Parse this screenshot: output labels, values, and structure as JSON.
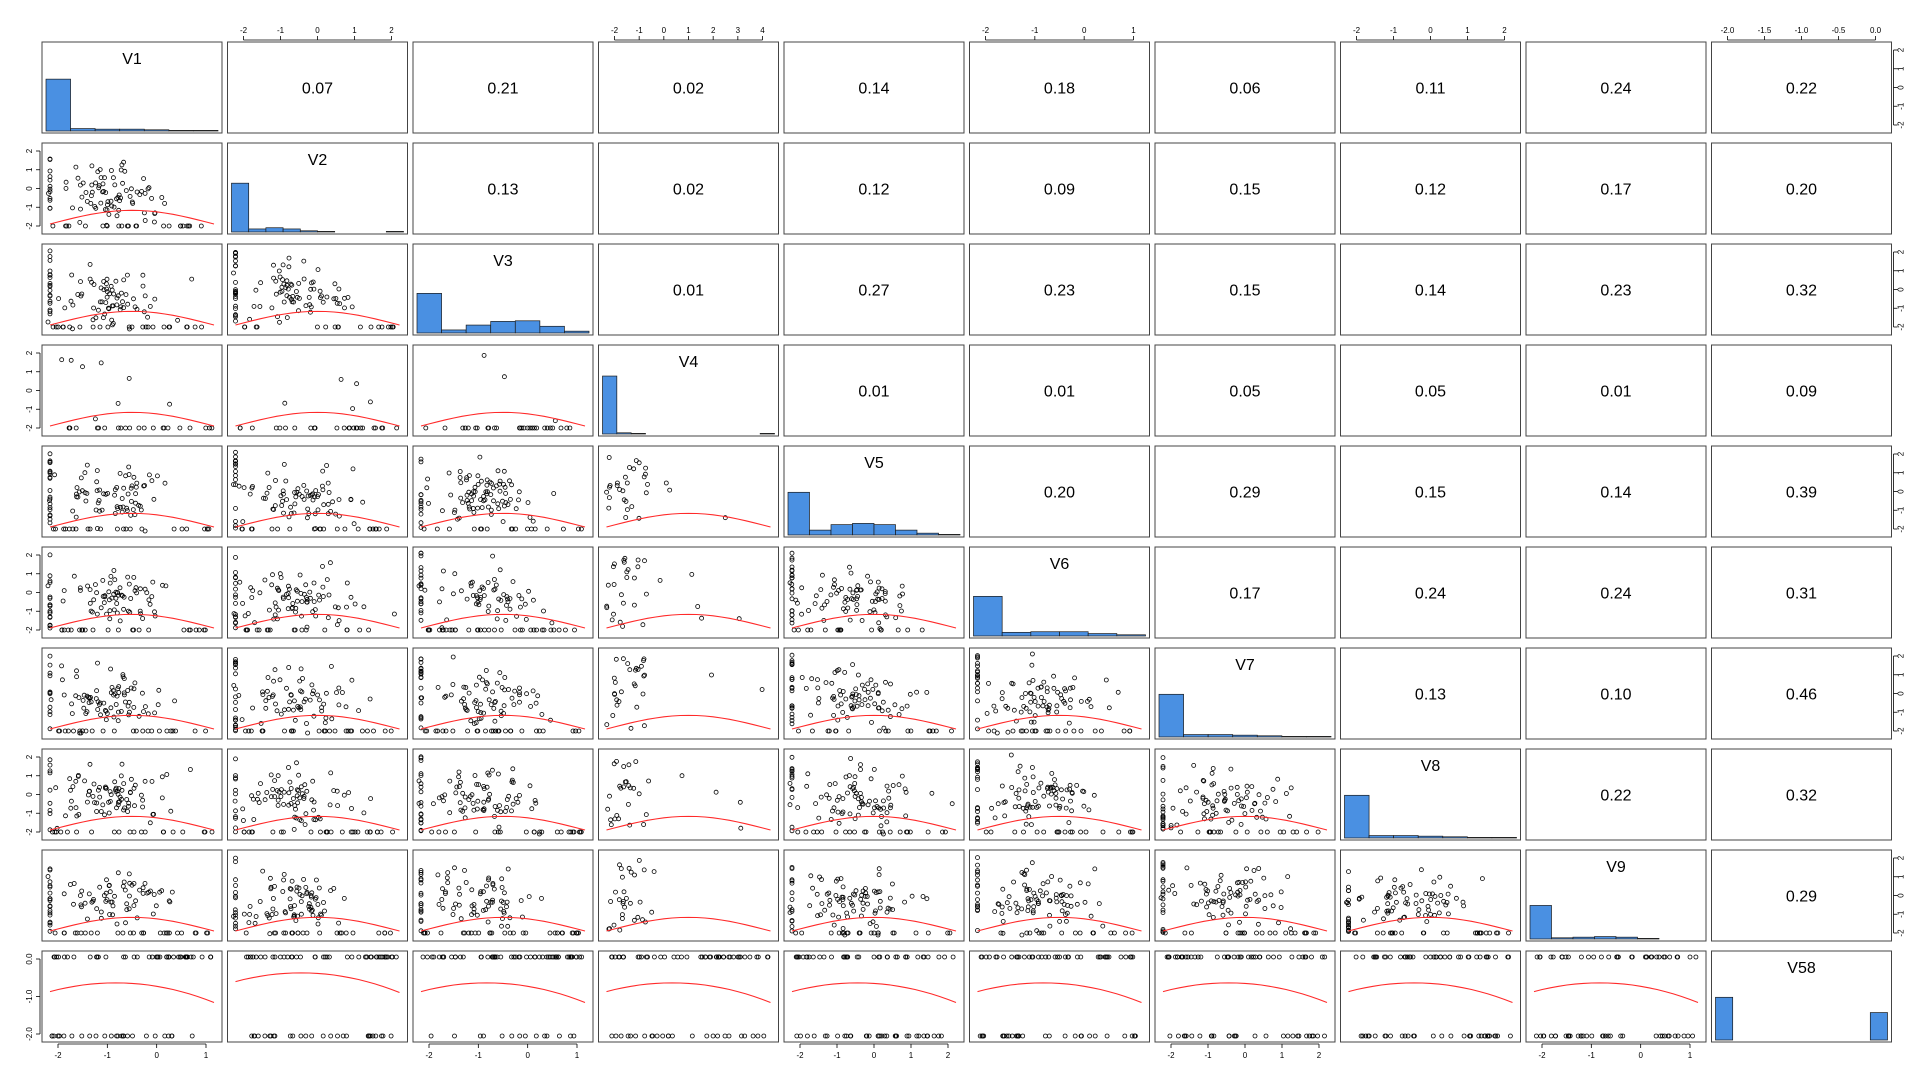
{
  "chart_data": {
    "type": "scatter",
    "title": "",
    "variables": [
      "V1",
      "V2",
      "V3",
      "V4",
      "V5",
      "V6",
      "V7",
      "V8",
      "V9",
      "V58"
    ],
    "correlations": [
      [
        "",
        "0.07",
        "0.21",
        "0.02",
        "0.14",
        "0.18",
        "0.06",
        "0.11",
        "0.24",
        "0.22"
      ],
      [
        "",
        "",
        "0.13",
        "0.02",
        "0.12",
        "0.09",
        "0.15",
        "0.12",
        "0.17",
        "0.20"
      ],
      [
        "",
        "",
        "",
        "0.01",
        "0.27",
        "0.23",
        "0.15",
        "0.14",
        "0.23",
        "0.32"
      ],
      [
        "",
        "",
        "",
        "",
        "0.01",
        "0.01",
        "0.05",
        "0.05",
        "0.01",
        "0.09"
      ],
      [
        "",
        "",
        "",
        "",
        "",
        "0.20",
        "0.29",
        "0.15",
        "0.14",
        "0.39"
      ],
      [
        "",
        "",
        "",
        "",
        "",
        "",
        "0.17",
        "0.24",
        "0.24",
        "0.31"
      ],
      [
        "",
        "",
        "",
        "",
        "",
        "",
        "",
        "0.13",
        "0.10",
        "0.46"
      ],
      [
        "",
        "",
        "",
        "",
        "",
        "",
        "",
        "",
        "0.22",
        "0.32"
      ],
      [
        "",
        "",
        "",
        "",
        "",
        "",
        "",
        "",
        "",
        "0.29"
      ],
      [
        "",
        "",
        "",
        "",
        "",
        "",
        "",
        "",
        "",
        ""
      ]
    ],
    "ranges": [
      [
        -2.4,
        1.7
      ],
      [
        -2.4,
        2.9
      ],
      [
        -2.4,
        1.7
      ],
      [
        -2.4,
        4.0
      ],
      [
        -2.4,
        2.4
      ],
      [
        -2.4,
        1.6
      ],
      [
        -2.4,
        2.2
      ],
      [
        -2.4,
        2.2
      ],
      [
        -2.4,
        1.7
      ],
      [
        -2.2,
        0.1
      ]
    ],
    "ticks": [
      [
        "-2",
        "-1",
        "0",
        "1"
      ],
      [
        "-2",
        "-1",
        "0",
        "1",
        "2"
      ],
      [
        "-2",
        "-1",
        "0",
        "1"
      ],
      [
        "-2",
        "-1",
        "0",
        "1",
        "2",
        "3",
        "4"
      ],
      [
        "-2",
        "-1",
        "0",
        "1",
        "2"
      ],
      [
        "-2",
        "-1",
        "0",
        "1"
      ],
      [
        "-2",
        "-1",
        "0",
        "1",
        "2"
      ],
      [
        "-2",
        "-1",
        "0",
        "1",
        "2"
      ],
      [
        "-2",
        "-1",
        "0",
        "1"
      ],
      [
        "-2.0",
        "-1.5",
        "-1.0",
        "-0.5",
        "0.0"
      ]
    ],
    "ticks_v58_side": [
      "-2.0",
      "-1.0",
      "0.0"
    ],
    "histograms": [
      [
        0.85,
        0.04,
        0.03,
        0.03,
        0.02,
        0.01,
        0.01
      ],
      [
        0.8,
        0.05,
        0.07,
        0.05,
        0.02,
        0.01,
        0.0,
        0.0,
        0.0,
        0.01
      ],
      [
        0.65,
        0.05,
        0.13,
        0.19,
        0.2,
        0.11,
        0.03
      ],
      [
        0.95,
        0.02,
        0.01,
        0.0,
        0.0,
        0.0,
        0.0,
        0.0,
        0.0,
        0.0,
        0.0,
        0.01
      ],
      [
        0.7,
        0.08,
        0.17,
        0.19,
        0.17,
        0.08,
        0.03,
        0.01
      ],
      [
        0.65,
        0.06,
        0.07,
        0.07,
        0.04,
        0.02
      ],
      [
        0.7,
        0.04,
        0.04,
        0.03,
        0.02,
        0.01,
        0.01
      ],
      [
        0.7,
        0.04,
        0.04,
        0.03,
        0.02,
        0.01,
        0.01
      ],
      [
        0.55,
        0.02,
        0.03,
        0.04,
        0.03,
        0.01,
        0.0,
        0.0
      ],
      [
        0.7,
        0.0,
        0.0,
        0.0,
        0.0,
        0.0,
        0.0,
        0.0,
        0.0,
        0.45
      ]
    ],
    "grid": false,
    "legend": "none"
  }
}
